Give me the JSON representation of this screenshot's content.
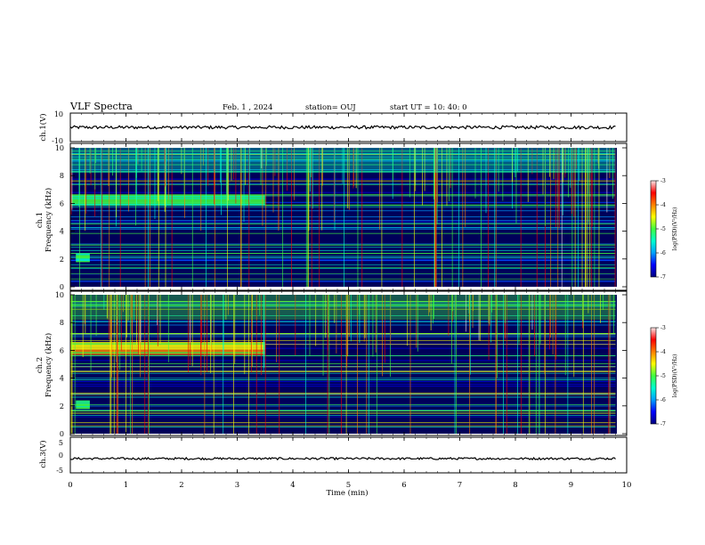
{
  "header": {
    "title": "VLF Spectra",
    "date": "Feb. 1 , 2024",
    "station": "station= OUJ",
    "start": "start UT =  10: 40: 0"
  },
  "chart_data": [
    {
      "type": "line",
      "panel": "ch1-waveform",
      "ylabel": "ch.1(V)",
      "ylim": [
        -10,
        10
      ],
      "yticks": [
        "10",
        "-10"
      ],
      "series": [
        {
          "x": [
            0,
            9.8
          ],
          "values": [
            0,
            0
          ]
        }
      ]
    },
    {
      "type": "heatmap",
      "panel": "ch1-spectrogram",
      "ylabel": [
        "ch.1",
        "Frequency  (kHz)"
      ],
      "ylim": [
        0,
        10
      ],
      "yticks": [
        "0",
        "2",
        "4",
        "6",
        "8",
        "10"
      ],
      "colorbar": {
        "label": "log(PSD)(V²/Hz)",
        "range": [
          -7,
          -3
        ],
        "ticks": [
          "-3",
          "-4",
          "-5",
          "-6",
          "-7"
        ]
      },
      "bands": [
        {
          "x": [
            0,
            3.5
          ],
          "freq": [
            5.9,
            6.6
          ],
          "level": -5.2
        },
        {
          "x": [
            0.1,
            0.35
          ],
          "freq": [
            1.8,
            2.4
          ],
          "level": -5.3
        }
      ]
    },
    {
      "type": "heatmap",
      "panel": "ch2-spectrogram",
      "ylabel": [
        "ch.2",
        "Frequency  (kHz)"
      ],
      "ylim": [
        0,
        10
      ],
      "yticks": [
        "0",
        "2",
        "4",
        "6",
        "8",
        "10"
      ],
      "colorbar": {
        "label": "log(PSD)(V²/Hz)",
        "range": [
          -7,
          -3
        ],
        "ticks": [
          "-3",
          "-4",
          "-5",
          "-6",
          "-7"
        ]
      },
      "bands": [
        {
          "x": [
            0,
            3.5
          ],
          "freq": [
            5.7,
            6.6
          ],
          "level": -4.5
        },
        {
          "x": [
            0.1,
            0.35
          ],
          "freq": [
            1.8,
            2.4
          ],
          "level": -5.0
        }
      ]
    },
    {
      "type": "line",
      "panel": "ch3-waveform",
      "ylabel": "ch.3(V)",
      "ylim": [
        -5,
        5
      ],
      "yticks": [
        "5",
        "0",
        "-5"
      ],
      "series": [
        {
          "x": [
            0,
            9.8
          ],
          "values": [
            -1,
            -1
          ]
        }
      ]
    }
  ],
  "xaxis": {
    "label": "Time  (min)",
    "range": [
      0,
      10
    ],
    "ticks": [
      "0",
      "1",
      "2",
      "3",
      "4",
      "5",
      "6",
      "7",
      "8",
      "9",
      "10"
    ]
  },
  "colors": {
    "background": "#000050",
    "colormap": [
      "#00007f",
      "#0000ff",
      "#00a0ff",
      "#00ffd0",
      "#40ff40",
      "#ffff00",
      "#ff8000",
      "#ff0000",
      "#ffe8e8"
    ]
  }
}
